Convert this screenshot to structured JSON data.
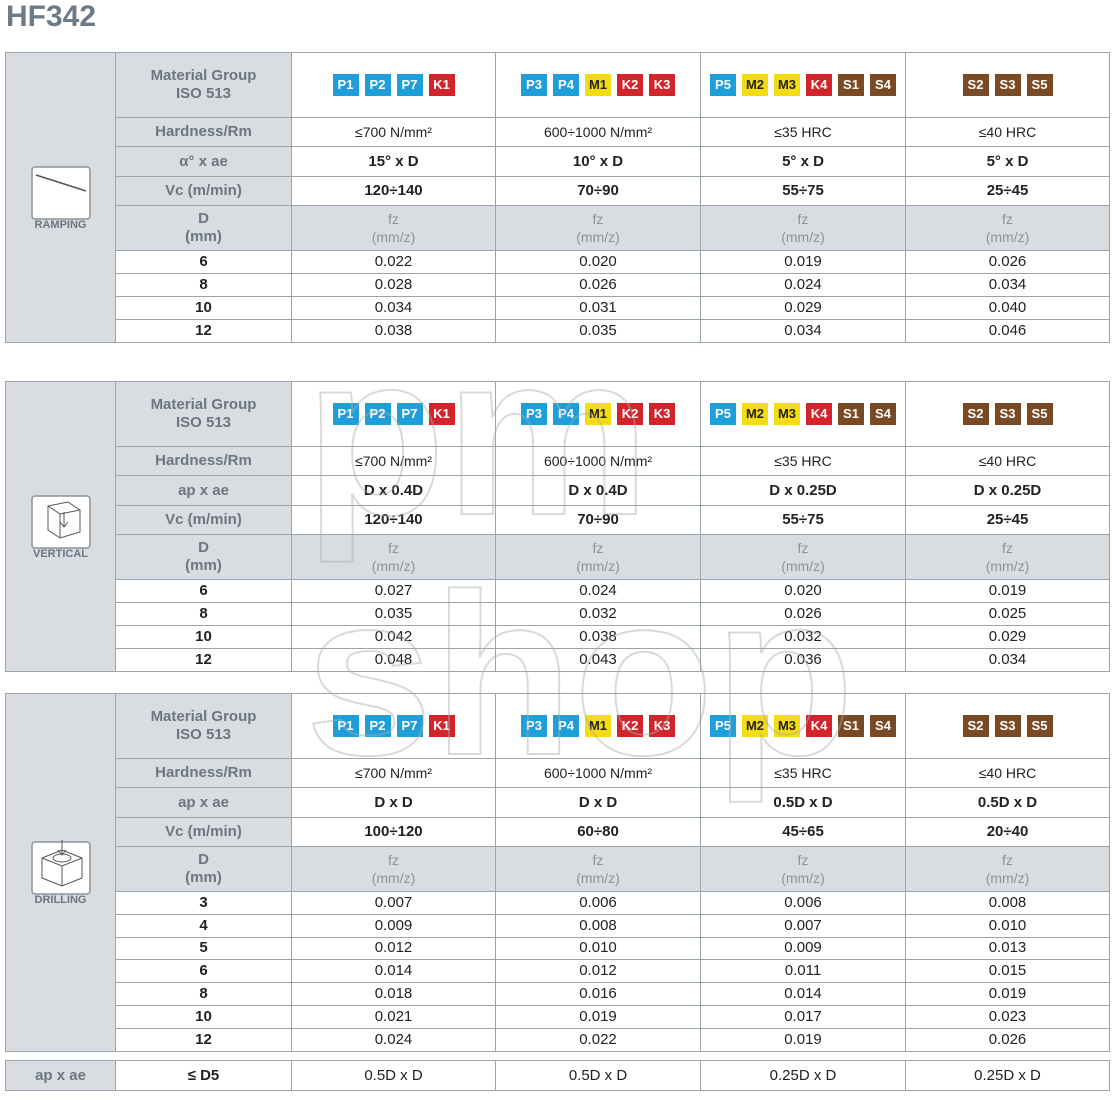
{
  "header": {
    "title": "HF342"
  },
  "chip_colors": {
    "P": "#1e9fda",
    "M": "#f4dc12",
    "K": "#d3242c",
    "S": "#7a4a24"
  },
  "watermark": [
    "pm",
    "shop"
  ],
  "sections": [
    {
      "icon_label": "RAMPING",
      "material_label": [
        "Material Group",
        "ISO 513"
      ],
      "groups": [
        [
          "P1",
          "P2",
          "P7",
          "K1"
        ],
        [
          "P3",
          "P4",
          "M1",
          "K2",
          "K3"
        ],
        [
          "P5",
          "M2",
          "M3",
          "K4",
          "S1",
          "S4"
        ],
        [
          "S2",
          "S3",
          "S5"
        ]
      ],
      "hardness_label": "Hardness/Rm",
      "hardness": [
        "≤700 N/mm²",
        "600÷1000 N/mm²",
        "≤35 HRC",
        "≤40 HRC"
      ],
      "cut_label": "α° x ae",
      "cut": [
        "15° x D",
        "10° x D",
        "5° x D",
        "5° x D"
      ],
      "vc_label": "Vc (m/min)",
      "vc": [
        "120÷140",
        "70÷90",
        "55÷75",
        "25÷45"
      ],
      "d_label": [
        "D",
        "(mm)"
      ],
      "fz_label": [
        "fz",
        "(mm/z)"
      ],
      "rows": [
        [
          6,
          "0.022",
          "0.020",
          "0.019",
          "0.026"
        ],
        [
          8,
          "0.028",
          "0.026",
          "0.024",
          "0.034"
        ],
        [
          10,
          "0.034",
          "0.031",
          "0.029",
          "0.040"
        ],
        [
          12,
          "0.038",
          "0.035",
          "0.034",
          "0.046"
        ]
      ]
    },
    {
      "icon_label": "VERTICAL",
      "material_label": [
        "Material Group",
        "ISO 513"
      ],
      "groups": [
        [
          "P1",
          "P2",
          "P7",
          "K1"
        ],
        [
          "P3",
          "P4",
          "M1",
          "K2",
          "K3"
        ],
        [
          "P5",
          "M2",
          "M3",
          "K4",
          "S1",
          "S4"
        ],
        [
          "S2",
          "S3",
          "S5"
        ]
      ],
      "hardness_label": "Hardness/Rm",
      "hardness": [
        "≤700 N/mm²",
        "600÷1000 N/mm²",
        "≤35 HRC",
        "≤40 HRC"
      ],
      "cut_label": "ap x ae",
      "cut": [
        "D x 0.4D",
        "D x 0.4D",
        "D x 0.25D",
        "D x 0.25D"
      ],
      "vc_label": "Vc (m/min)",
      "vc": [
        "120÷140",
        "70÷90",
        "55÷75",
        "25÷45"
      ],
      "d_label": [
        "D",
        "(mm)"
      ],
      "fz_label": [
        "fz",
        "(mm/z)"
      ],
      "rows": [
        [
          6,
          "0.027",
          "0.024",
          "0.020",
          "0.019"
        ],
        [
          8,
          "0.035",
          "0.032",
          "0.026",
          "0.025"
        ],
        [
          10,
          "0.042",
          "0.038",
          "0.032",
          "0.029"
        ],
        [
          12,
          "0.048",
          "0.043",
          "0.036",
          "0.034"
        ]
      ]
    },
    {
      "icon_label": "DRILLING",
      "material_label": [
        "Material Group",
        "ISO 513"
      ],
      "groups": [
        [
          "P1",
          "P2",
          "P7",
          "K1"
        ],
        [
          "P3",
          "P4",
          "M1",
          "K2",
          "K3"
        ],
        [
          "P5",
          "M2",
          "M3",
          "K4",
          "S1",
          "S4"
        ],
        [
          "S2",
          "S3",
          "S5"
        ]
      ],
      "hardness_label": "Hardness/Rm",
      "hardness": [
        "≤700 N/mm²",
        "600÷1000 N/mm²",
        "≤35 HRC",
        "≤40 HRC"
      ],
      "cut_label": "ap x ae",
      "cut": [
        "D x D",
        "D x D",
        "0.5D x D",
        "0.5D x D"
      ],
      "vc_label": "Vc (m/min)",
      "vc": [
        "100÷120",
        "60÷80",
        "45÷65",
        "20÷40"
      ],
      "d_label": [
        "D",
        "(mm)"
      ],
      "fz_label": [
        "fz",
        "(mm/z)"
      ],
      "rows": [
        [
          3,
          "0.007",
          "0.006",
          "0.006",
          "0.008"
        ],
        [
          4,
          "0.009",
          "0.008",
          "0.007",
          "0.010"
        ],
        [
          5,
          "0.012",
          "0.010",
          "0.009",
          "0.013"
        ],
        [
          6,
          "0.014",
          "0.012",
          "0.011",
          "0.015"
        ],
        [
          8,
          "0.018",
          "0.016",
          "0.014",
          "0.019"
        ],
        [
          10,
          "0.021",
          "0.019",
          "0.017",
          "0.023"
        ],
        [
          12,
          "0.024",
          "0.022",
          "0.019",
          "0.026"
        ]
      ]
    }
  ],
  "footer": {
    "label": "ap x ae",
    "d": "≤ D5",
    "values": [
      "0.5D x D",
      "0.5D x D",
      "0.25D x D",
      "0.25D x D"
    ]
  }
}
